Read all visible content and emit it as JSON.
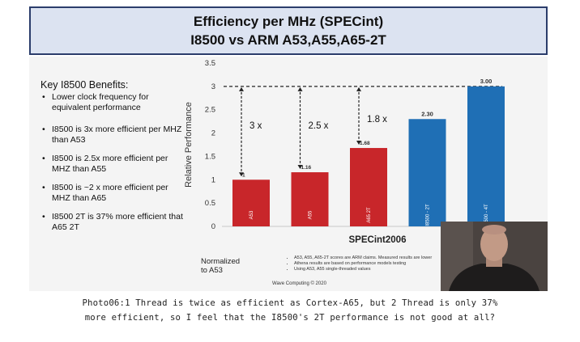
{
  "header": {
    "title_line1": "Efficiency per MHz (SPECint)",
    "title_line2": "I8500 vs ARM A53,A55,A65-2T"
  },
  "benefits": {
    "title": "Key I8500 Benefits:",
    "items": [
      "Lower clock frequency for equivalent performance",
      "I8500 is 3x more efficient per MHZ than A53",
      "I8500 is 2.5x more efficient per MHZ than A55",
      "I8500 is ~2 x more efficient per MHZ than A65",
      "I8500 2T is 37% more efficient that A65 2T"
    ]
  },
  "chart_data": {
    "type": "bar",
    "categories": [
      "A53",
      "A55",
      "A65 2T",
      "I8500 - 2T",
      "I8500 - 4T"
    ],
    "values": [
      1,
      1.16,
      1.68,
      2.3,
      3.0
    ],
    "value_labels": [
      "1",
      "1.16",
      "1.68",
      "2.30",
      "3.00"
    ],
    "ylabel": "Relative Performance",
    "xlabel": "SPECint2006",
    "ylim": [
      0,
      3.5
    ],
    "yticks": [
      "0",
      "0.5",
      "1",
      "1.5",
      "2",
      "2.5",
      "3",
      "3.5"
    ],
    "reference_line": 3,
    "annotations": [
      "3 x",
      "2.5 x",
      "1.8 x"
    ],
    "colors": {
      "arm": "#c8262a",
      "i8500": "#1f6fb5"
    }
  },
  "footer": {
    "normalized_line1": "Normalized",
    "normalized_line2": "to A53",
    "notes": [
      "A53, A55, A65-2T scores are ARM claims. Measured results are lower",
      "Athena results are based on performance models testing",
      "Using A53, A55 single-threaded values"
    ],
    "credit": "Wave Computing © 2020"
  },
  "caption": {
    "line1": "Photo06:1 Thread is twice as efficient as Cortex-A65, but 2 Thread is only 37%",
    "line2": "more efficient, so I feel that the I8500's 2T performance is not good at all?"
  }
}
